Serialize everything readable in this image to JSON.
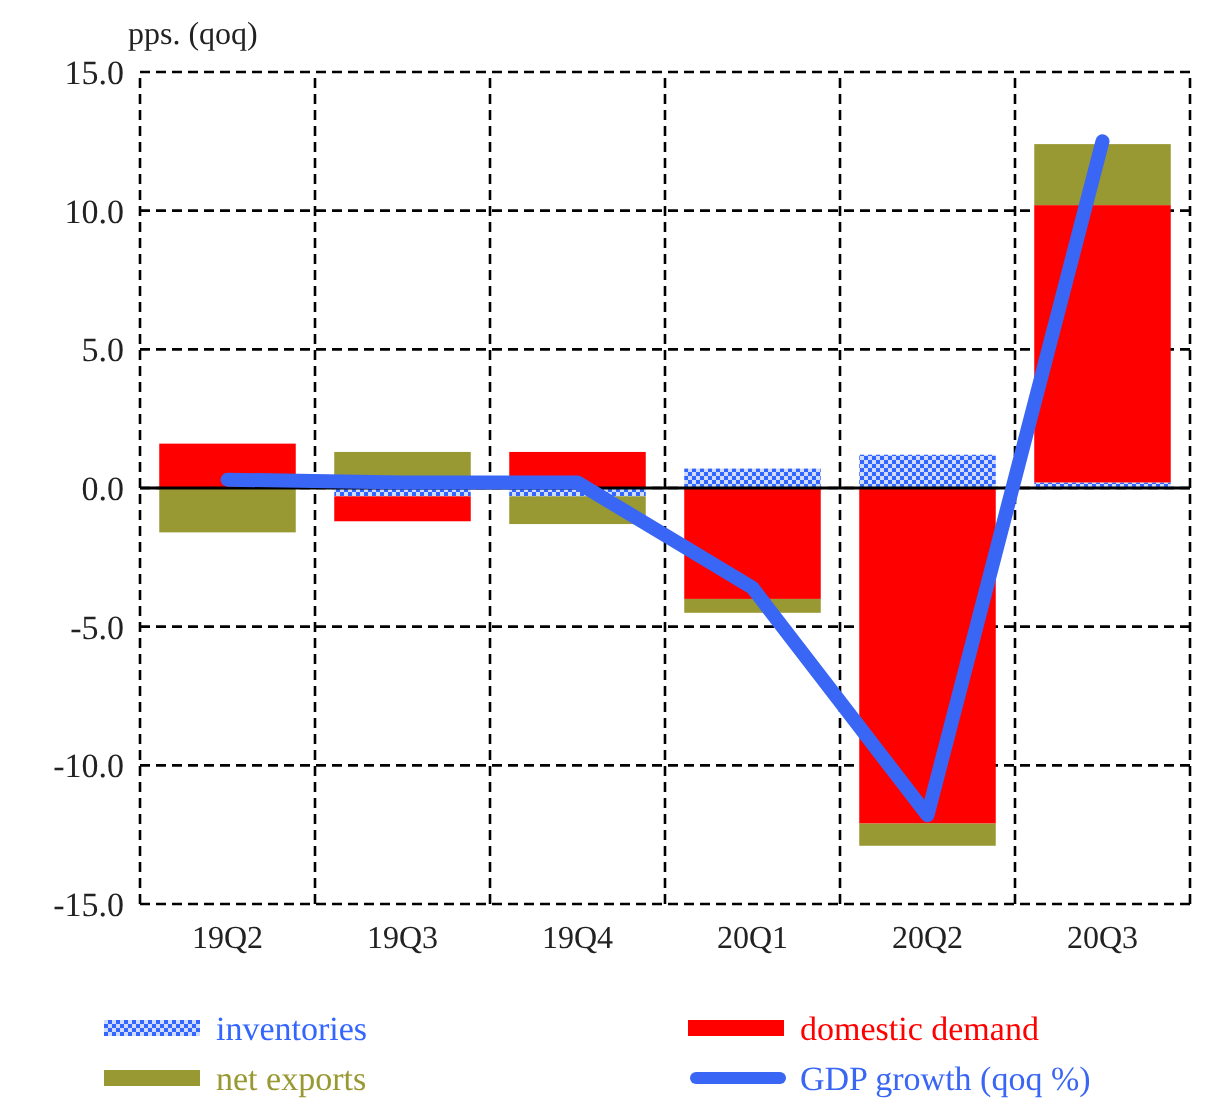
{
  "chart_data": {
    "type": "bar",
    "stacked": true,
    "ylabel": "pps. (qoq)",
    "categories": [
      "19Q2",
      "19Q3",
      "19Q4",
      "20Q1",
      "20Q2",
      "20Q3"
    ],
    "ylim": [
      -15,
      15
    ],
    "yticks": [
      {
        "value": -15,
        "label": "-15.0"
      },
      {
        "value": -10,
        "label": "-10.0"
      },
      {
        "value": -5,
        "label": "-5.0"
      },
      {
        "value": 0,
        "label": "0.0"
      },
      {
        "value": 5,
        "label": "5.0"
      },
      {
        "value": 10,
        "label": "10.0"
      },
      {
        "value": 15,
        "label": "15.0"
      }
    ],
    "grid": true,
    "legend": "bottom",
    "line_style": "solid",
    "series": [
      {
        "name": "inventories",
        "color": "#3366ff",
        "values": [
          0,
          -0.3,
          -0.3,
          0.7,
          1.2,
          0.2
        ]
      },
      {
        "name": "domestic demand",
        "color": "#ff0000",
        "values": [
          1.6,
          -0.9,
          1.3,
          -4.0,
          -12.1,
          10.0
        ]
      },
      {
        "name": "net exports",
        "color": "#999933",
        "values": [
          -1.6,
          1.3,
          -1.0,
          -0.5,
          -0.8,
          2.2
        ]
      },
      {
        "name": "GDP growth (qoq %)",
        "type": "line",
        "color": "#3a66f5",
        "values": [
          0.3,
          0.2,
          0.2,
          -3.6,
          -11.8,
          12.5
        ]
      }
    ]
  }
}
